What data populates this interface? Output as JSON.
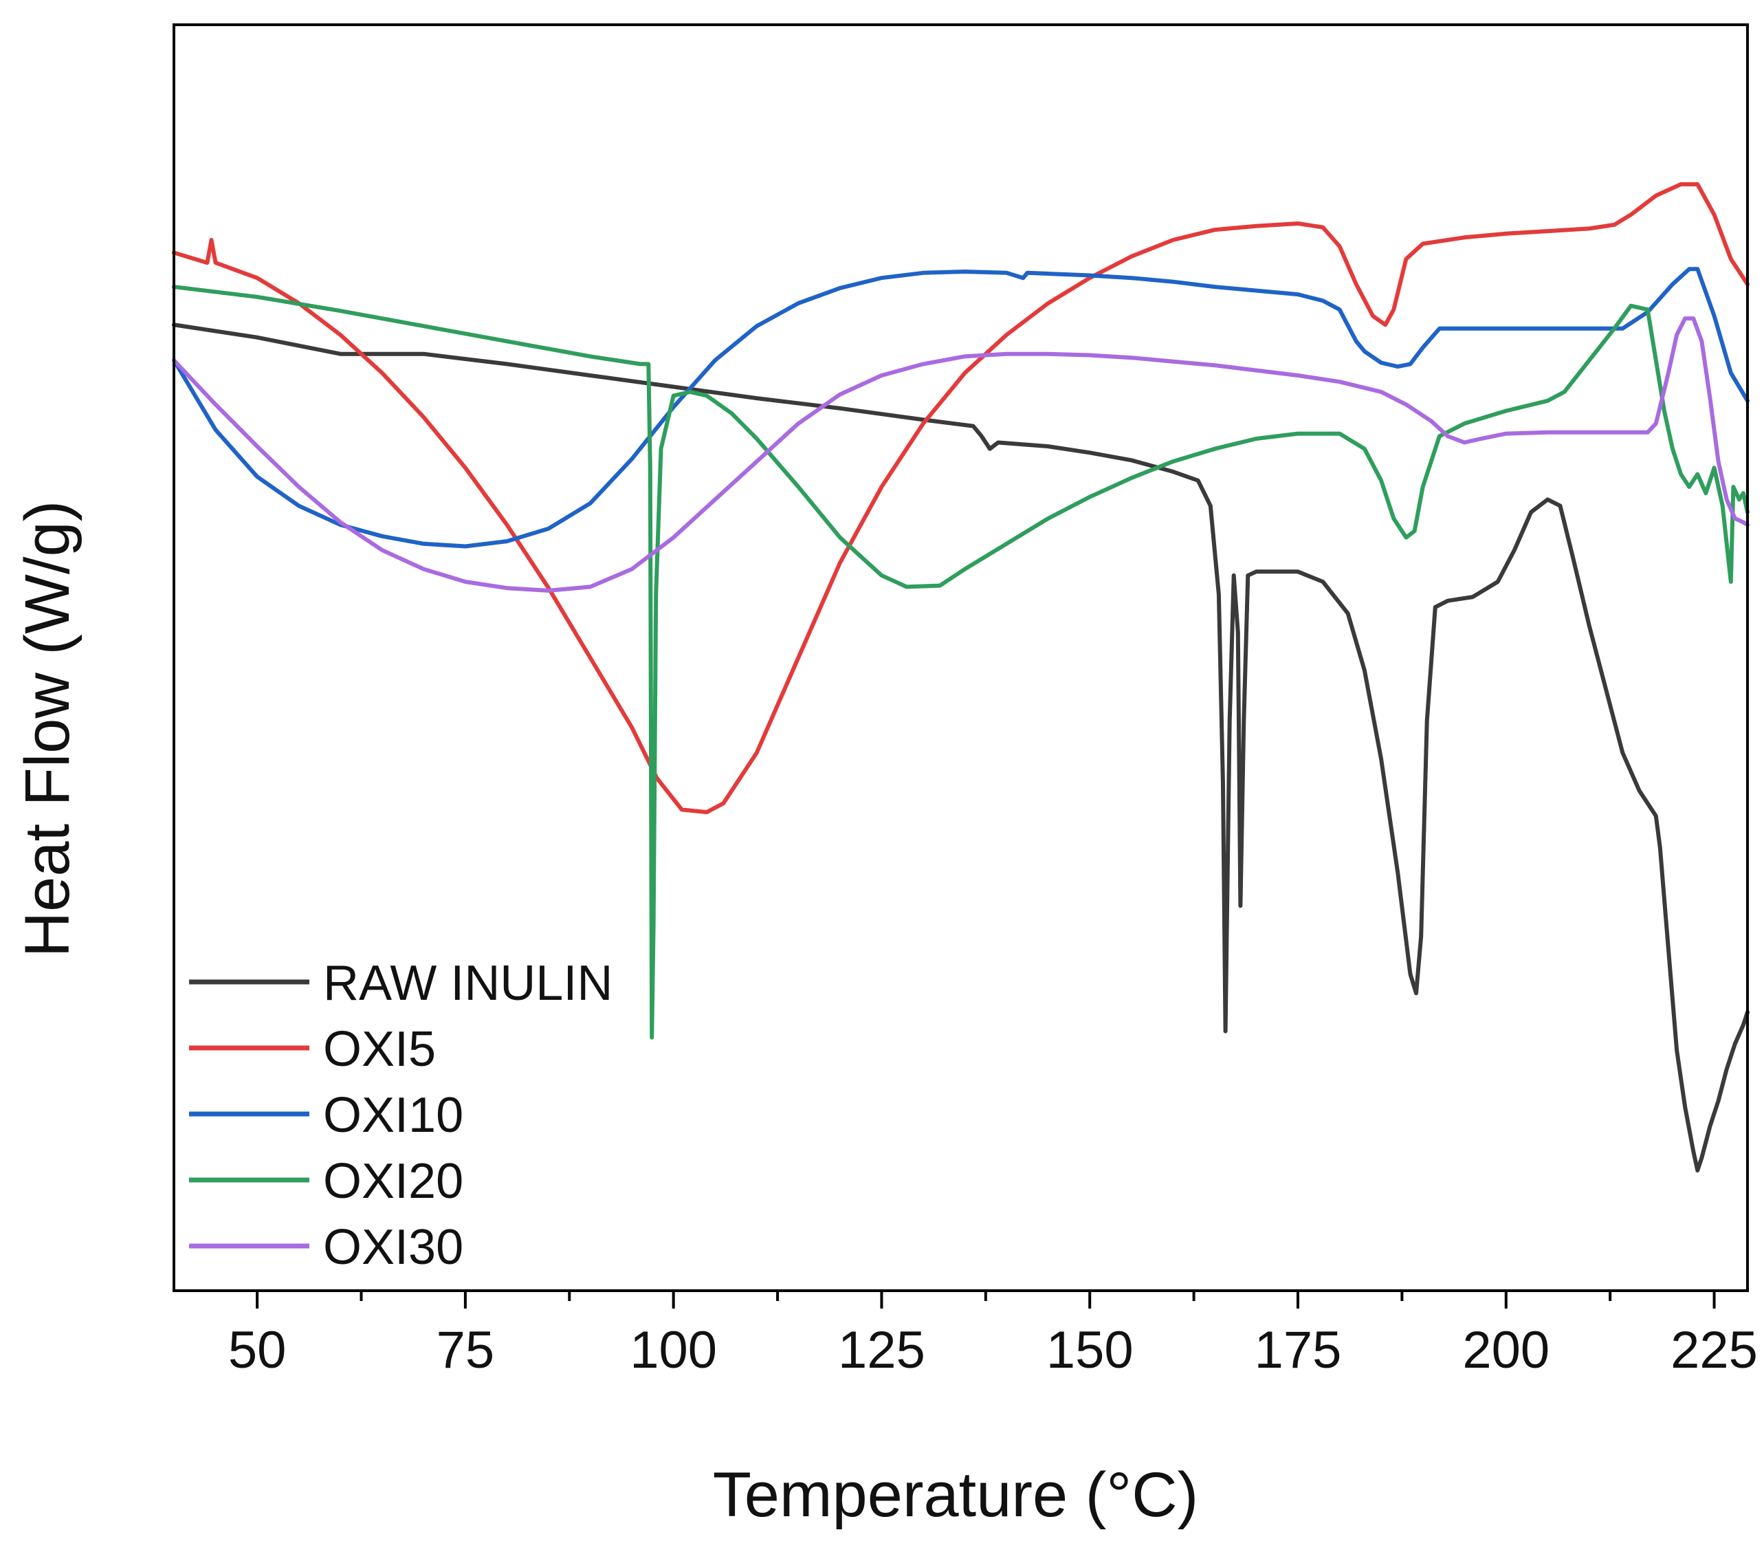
{
  "chart_data": {
    "type": "line",
    "title": "",
    "xlabel": "Temperature (°C)",
    "ylabel": "Heat Flow (W/g)",
    "xlim": [
      40,
      229
    ],
    "ylim": [
      0,
      100
    ],
    "x_ticks": [
      50,
      75,
      100,
      125,
      150,
      175,
      200,
      225
    ],
    "x_tick_labels": [
      "50",
      "75",
      "100",
      "125",
      "150",
      "175",
      "200",
      "225"
    ],
    "y_ticks_shown": false,
    "grid": false,
    "legend_position": "bottom-left",
    "series": [
      {
        "name": "RAW INULIN",
        "color": "#3a3a3a",
        "points": [
          [
            40,
            76.3
          ],
          [
            50,
            75.3
          ],
          [
            60,
            74.0
          ],
          [
            70,
            74.0
          ],
          [
            80,
            73.2
          ],
          [
            90,
            72.3
          ],
          [
            100,
            71.4
          ],
          [
            110,
            70.5
          ],
          [
            120,
            69.7
          ],
          [
            130,
            68.8
          ],
          [
            136,
            68.3
          ],
          [
            137,
            67.5
          ],
          [
            138,
            66.5
          ],
          [
            139,
            67.0
          ],
          [
            145,
            66.7
          ],
          [
            150,
            66.2
          ],
          [
            155,
            65.6
          ],
          [
            160,
            64.7
          ],
          [
            163,
            64.0
          ],
          [
            164.5,
            62.0
          ],
          [
            165.5,
            55.0
          ],
          [
            166.0,
            40.0
          ],
          [
            166.3,
            20.5
          ],
          [
            166.8,
            45.0
          ],
          [
            167.3,
            56.5
          ],
          [
            167.8,
            52.0
          ],
          [
            168.1,
            30.4
          ],
          [
            168.5,
            45.0
          ],
          [
            169.0,
            56.5
          ],
          [
            170,
            56.8
          ],
          [
            175,
            56.8
          ],
          [
            178,
            56.0
          ],
          [
            181,
            53.5
          ],
          [
            183,
            49.0
          ],
          [
            185,
            42.0
          ],
          [
            187,
            33.0
          ],
          [
            188.5,
            25.0
          ],
          [
            189.2,
            23.5
          ],
          [
            189.8,
            28.0
          ],
          [
            190.5,
            45.0
          ],
          [
            191.5,
            54.0
          ],
          [
            193,
            54.5
          ],
          [
            196,
            54.8
          ],
          [
            199,
            56.0
          ],
          [
            201,
            58.5
          ],
          [
            203,
            61.5
          ],
          [
            205,
            62.5
          ],
          [
            206.5,
            62.0
          ],
          [
            208,
            58.0
          ],
          [
            210,
            52.5
          ],
          [
            212,
            47.5
          ],
          [
            214,
            42.5
          ],
          [
            216,
            39.5
          ],
          [
            218,
            37.5
          ],
          [
            218.5,
            35.0
          ],
          [
            219.5,
            27.0
          ],
          [
            220.5,
            19.0
          ],
          [
            221.5,
            14.5
          ],
          [
            222.5,
            11.0
          ],
          [
            223.0,
            9.5
          ],
          [
            223.5,
            10.5
          ],
          [
            224.5,
            13.0
          ],
          [
            225.5,
            15.0
          ],
          [
            226.5,
            17.5
          ],
          [
            227.5,
            19.5
          ],
          [
            228.5,
            21.0
          ],
          [
            229,
            22.0
          ]
        ]
      },
      {
        "name": "OXI5",
        "color": "#e33b3b",
        "points": [
          [
            40,
            82.0
          ],
          [
            44,
            81.2
          ],
          [
            44.5,
            83.0
          ],
          [
            45,
            81.2
          ],
          [
            50,
            80.0
          ],
          [
            55,
            78.0
          ],
          [
            60,
            75.5
          ],
          [
            65,
            72.5
          ],
          [
            70,
            69.0
          ],
          [
            75,
            65.0
          ],
          [
            80,
            60.5
          ],
          [
            85,
            55.5
          ],
          [
            90,
            50.0
          ],
          [
            95,
            44.5
          ],
          [
            98,
            40.5
          ],
          [
            101,
            38.0
          ],
          [
            104,
            37.8
          ],
          [
            106,
            38.5
          ],
          [
            110,
            42.5
          ],
          [
            115,
            50.0
          ],
          [
            120,
            57.5
          ],
          [
            125,
            63.5
          ],
          [
            130,
            68.5
          ],
          [
            135,
            72.5
          ],
          [
            140,
            75.5
          ],
          [
            145,
            78.0
          ],
          [
            150,
            80.0
          ],
          [
            155,
            81.7
          ],
          [
            160,
            83.0
          ],
          [
            165,
            83.8
          ],
          [
            170,
            84.1
          ],
          [
            175,
            84.3
          ],
          [
            178,
            84.0
          ],
          [
            180,
            82.5
          ],
          [
            182,
            79.5
          ],
          [
            184,
            77.0
          ],
          [
            185.5,
            76.3
          ],
          [
            186.5,
            77.5
          ],
          [
            188,
            81.5
          ],
          [
            190,
            82.7
          ],
          [
            195,
            83.2
          ],
          [
            200,
            83.5
          ],
          [
            205,
            83.7
          ],
          [
            210,
            83.9
          ],
          [
            213,
            84.2
          ],
          [
            215,
            85.0
          ],
          [
            218,
            86.5
          ],
          [
            221,
            87.4
          ],
          [
            223,
            87.4
          ],
          [
            225,
            85.0
          ],
          [
            227,
            81.5
          ],
          [
            229,
            79.5
          ]
        ]
      },
      {
        "name": "OXI10",
        "color": "#1f63c6",
        "points": [
          [
            40,
            73.5
          ],
          [
            45,
            68.0
          ],
          [
            50,
            64.3
          ],
          [
            55,
            62.0
          ],
          [
            60,
            60.5
          ],
          [
            65,
            59.6
          ],
          [
            70,
            59.0
          ],
          [
            75,
            58.8
          ],
          [
            80,
            59.2
          ],
          [
            85,
            60.2
          ],
          [
            90,
            62.2
          ],
          [
            95,
            65.7
          ],
          [
            100,
            69.8
          ],
          [
            105,
            73.5
          ],
          [
            110,
            76.2
          ],
          [
            115,
            78.0
          ],
          [
            120,
            79.2
          ],
          [
            125,
            80.0
          ],
          [
            130,
            80.4
          ],
          [
            135,
            80.5
          ],
          [
            140,
            80.4
          ],
          [
            142,
            80.0
          ],
          [
            142.5,
            80.4
          ],
          [
            150,
            80.2
          ],
          [
            155,
            80.0
          ],
          [
            160,
            79.7
          ],
          [
            165,
            79.3
          ],
          [
            170,
            79.0
          ],
          [
            175,
            78.7
          ],
          [
            178,
            78.2
          ],
          [
            180,
            77.5
          ],
          [
            182,
            75.0
          ],
          [
            183,
            74.2
          ],
          [
            185,
            73.3
          ],
          [
            187,
            73.0
          ],
          [
            188.5,
            73.2
          ],
          [
            190,
            74.5
          ],
          [
            192,
            76.0
          ],
          [
            195,
            76.0
          ],
          [
            200,
            76.0
          ],
          [
            205,
            76.0
          ],
          [
            210,
            76.0
          ],
          [
            214,
            76.0
          ],
          [
            217,
            77.3
          ],
          [
            220,
            79.5
          ],
          [
            222,
            80.7
          ],
          [
            223,
            80.7
          ],
          [
            225,
            77.0
          ],
          [
            227,
            72.5
          ],
          [
            229,
            70.3
          ]
        ]
      },
      {
        "name": "OXI20",
        "color": "#2f9e5d",
        "points": [
          [
            40,
            79.3
          ],
          [
            50,
            78.5
          ],
          [
            60,
            77.4
          ],
          [
            70,
            76.2
          ],
          [
            80,
            75.0
          ],
          [
            90,
            73.8
          ],
          [
            96,
            73.2
          ],
          [
            97,
            73.2
          ],
          [
            97.2,
            65.0
          ],
          [
            97.4,
            20.0
          ],
          [
            97.6,
            28.8
          ],
          [
            97.9,
            55.0
          ],
          [
            98.5,
            66.5
          ],
          [
            100,
            70.7
          ],
          [
            102,
            71.0
          ],
          [
            104,
            70.7
          ],
          [
            107,
            69.3
          ],
          [
            110,
            67.3
          ],
          [
            115,
            63.5
          ],
          [
            120,
            59.5
          ],
          [
            125,
            56.5
          ],
          [
            128,
            55.6
          ],
          [
            132,
            55.7
          ],
          [
            135,
            57.0
          ],
          [
            140,
            59.0
          ],
          [
            145,
            61.0
          ],
          [
            150,
            62.7
          ],
          [
            155,
            64.2
          ],
          [
            160,
            65.5
          ],
          [
            165,
            66.5
          ],
          [
            170,
            67.3
          ],
          [
            175,
            67.7
          ],
          [
            180,
            67.7
          ],
          [
            183,
            66.5
          ],
          [
            185,
            64.0
          ],
          [
            186.5,
            61.0
          ],
          [
            188,
            59.5
          ],
          [
            189,
            60.0
          ],
          [
            190,
            63.5
          ],
          [
            192,
            67.5
          ],
          [
            195,
            68.5
          ],
          [
            200,
            69.5
          ],
          [
            205,
            70.3
          ],
          [
            207,
            71.0
          ],
          [
            210,
            73.5
          ],
          [
            213,
            76.0
          ],
          [
            215,
            77.8
          ],
          [
            217,
            77.5
          ],
          [
            218,
            73.5
          ],
          [
            219,
            69.5
          ],
          [
            220,
            66.5
          ],
          [
            221,
            64.5
          ],
          [
            222,
            63.5
          ],
          [
            223,
            64.5
          ],
          [
            224,
            63.0
          ],
          [
            225,
            65.0
          ],
          [
            226,
            62.0
          ],
          [
            227,
            56.0
          ],
          [
            227.3,
            63.5
          ],
          [
            228,
            62.5
          ],
          [
            228.5,
            63.0
          ],
          [
            229,
            61.5
          ]
        ]
      },
      {
        "name": "OXI30",
        "color": "#a96be0",
        "points": [
          [
            40,
            73.5
          ],
          [
            45,
            70.0
          ],
          [
            50,
            66.7
          ],
          [
            55,
            63.5
          ],
          [
            60,
            60.7
          ],
          [
            65,
            58.5
          ],
          [
            70,
            57.0
          ],
          [
            75,
            56.0
          ],
          [
            80,
            55.5
          ],
          [
            85,
            55.3
          ],
          [
            90,
            55.6
          ],
          [
            95,
            57.0
          ],
          [
            100,
            59.5
          ],
          [
            105,
            62.5
          ],
          [
            110,
            65.5
          ],
          [
            115,
            68.5
          ],
          [
            120,
            70.8
          ],
          [
            125,
            72.3
          ],
          [
            130,
            73.2
          ],
          [
            135,
            73.8
          ],
          [
            140,
            74.0
          ],
          [
            145,
            74.0
          ],
          [
            150,
            73.9
          ],
          [
            155,
            73.7
          ],
          [
            160,
            73.4
          ],
          [
            165,
            73.1
          ],
          [
            170,
            72.7
          ],
          [
            175,
            72.3
          ],
          [
            180,
            71.8
          ],
          [
            185,
            71.0
          ],
          [
            188,
            70.0
          ],
          [
            191,
            68.7
          ],
          [
            193,
            67.5
          ],
          [
            195,
            67.0
          ],
          [
            197,
            67.3
          ],
          [
            200,
            67.7
          ],
          [
            205,
            67.8
          ],
          [
            210,
            67.8
          ],
          [
            214,
            67.8
          ],
          [
            217,
            67.8
          ],
          [
            218,
            68.5
          ],
          [
            219.5,
            72.5
          ],
          [
            220.5,
            75.5
          ],
          [
            221.5,
            76.8
          ],
          [
            222.5,
            76.8
          ],
          [
            223.5,
            75.0
          ],
          [
            224.5,
            70.5
          ],
          [
            225.5,
            65.5
          ],
          [
            226.5,
            62.5
          ],
          [
            227.5,
            61.0
          ],
          [
            228.5,
            60.7
          ],
          [
            229,
            60.5
          ]
        ]
      }
    ]
  }
}
